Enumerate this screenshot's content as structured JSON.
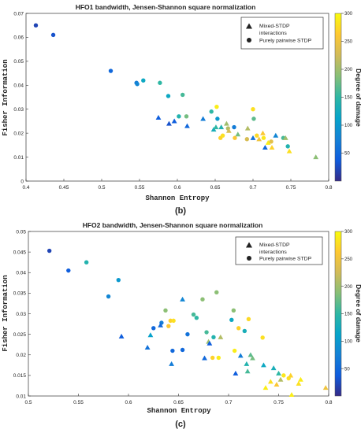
{
  "colorbar": {
    "label": "Degree of damage",
    "min": 0,
    "max": 300,
    "ticks": [
      50,
      100,
      150,
      200,
      250,
      300
    ]
  },
  "legend": {
    "items": [
      {
        "marker": "triangle",
        "label_lines": [
          "Mixed-STDP",
          "interactions"
        ]
      },
      {
        "marker": "circle",
        "label_lines": [
          "Purely pairwise STDP"
        ]
      }
    ]
  },
  "chart_data": [
    {
      "type": "scatter",
      "panel_label": "(b)",
      "title": "HFO1 bandwidth, Jensen-Shannon square normalization",
      "xlabel": "Shannon Entropy",
      "ylabel": "Fisher Information",
      "xlim": [
        0.4,
        0.8
      ],
      "ylim": [
        0,
        0.07
      ],
      "xticks": [
        0.4,
        0.45,
        0.5,
        0.55,
        0.6,
        0.65,
        0.7,
        0.75,
        0.8
      ],
      "yticks": [
        0,
        0.01,
        0.02,
        0.03,
        0.04,
        0.05,
        0.06,
        0.07
      ],
      "legend_position": "top-right",
      "series": [
        {
          "name": "Purely pairwise STDP",
          "marker": "circle",
          "points": [
            {
              "x": 0.413,
              "y": 0.065,
              "damage": 20
            },
            {
              "x": 0.436,
              "y": 0.061,
              "damage": 30
            },
            {
              "x": 0.512,
              "y": 0.046,
              "damage": 50
            },
            {
              "x": 0.546,
              "y": 0.041,
              "damage": 70
            },
            {
              "x": 0.547,
              "y": 0.0405,
              "damage": 80
            },
            {
              "x": 0.555,
              "y": 0.042,
              "damage": 120
            },
            {
              "x": 0.577,
              "y": 0.041,
              "damage": 150
            },
            {
              "x": 0.588,
              "y": 0.0355,
              "damage": 120
            },
            {
              "x": 0.602,
              "y": 0.027,
              "damage": 140
            },
            {
              "x": 0.607,
              "y": 0.036,
              "damage": 160
            },
            {
              "x": 0.612,
              "y": 0.027,
              "damage": 180
            },
            {
              "x": 0.645,
              "y": 0.029,
              "damage": 150
            },
            {
              "x": 0.652,
              "y": 0.031,
              "damage": 290
            },
            {
              "x": 0.653,
              "y": 0.026,
              "damage": 100
            },
            {
              "x": 0.657,
              "y": 0.018,
              "damage": 270
            },
            {
              "x": 0.66,
              "y": 0.019,
              "damage": 280
            },
            {
              "x": 0.667,
              "y": 0.022,
              "damage": 210
            },
            {
              "x": 0.675,
              "y": 0.0225,
              "damage": 70
            },
            {
              "x": 0.676,
              "y": 0.018,
              "damage": 260
            },
            {
              "x": 0.692,
              "y": 0.0175,
              "damage": 230
            },
            {
              "x": 0.7,
              "y": 0.03,
              "damage": 280
            },
            {
              "x": 0.701,
              "y": 0.026,
              "damage": 170
            },
            {
              "x": 0.705,
              "y": 0.019,
              "damage": 275
            },
            {
              "x": 0.714,
              "y": 0.018,
              "damage": 285
            },
            {
              "x": 0.724,
              "y": 0.0165,
              "damage": 240
            },
            {
              "x": 0.74,
              "y": 0.018,
              "damage": 160
            },
            {
              "x": 0.746,
              "y": 0.0145,
              "damage": 140
            }
          ]
        },
        {
          "name": "Mixed-STDP interactions",
          "marker": "triangle",
          "points": [
            {
              "x": 0.575,
              "y": 0.0265,
              "damage": 40
            },
            {
              "x": 0.589,
              "y": 0.024,
              "damage": 30
            },
            {
              "x": 0.596,
              "y": 0.025,
              "damage": 40
            },
            {
              "x": 0.613,
              "y": 0.023,
              "damage": 50
            },
            {
              "x": 0.634,
              "y": 0.026,
              "damage": 70
            },
            {
              "x": 0.648,
              "y": 0.0215,
              "damage": 130
            },
            {
              "x": 0.651,
              "y": 0.0225,
              "damage": 150
            },
            {
              "x": 0.658,
              "y": 0.0225,
              "damage": 140
            },
            {
              "x": 0.665,
              "y": 0.024,
              "damage": 200
            },
            {
              "x": 0.668,
              "y": 0.021,
              "damage": 230
            },
            {
              "x": 0.68,
              "y": 0.0195,
              "damage": 180
            },
            {
              "x": 0.693,
              "y": 0.022,
              "damage": 210
            },
            {
              "x": 0.7,
              "y": 0.018,
              "damage": 60
            },
            {
              "x": 0.708,
              "y": 0.0175,
              "damage": 250
            },
            {
              "x": 0.713,
              "y": 0.02,
              "damage": 260
            },
            {
              "x": 0.716,
              "y": 0.014,
              "damage": 50
            },
            {
              "x": 0.72,
              "y": 0.016,
              "damage": 290
            },
            {
              "x": 0.725,
              "y": 0.014,
              "damage": 270
            },
            {
              "x": 0.73,
              "y": 0.019,
              "damage": 80
            },
            {
              "x": 0.743,
              "y": 0.018,
              "damage": 200
            },
            {
              "x": 0.748,
              "y": 0.0125,
              "damage": 280
            },
            {
              "x": 0.783,
              "y": 0.01,
              "damage": 190
            }
          ]
        }
      ]
    },
    {
      "type": "scatter",
      "panel_label": "(c)",
      "title": "HFO2 bandwidth, Jensen-Shannon square normalization",
      "xlabel": "Shannon Entropy",
      "ylabel": "Fisher Information",
      "xlim": [
        0.5,
        0.8
      ],
      "ylim": [
        0.01,
        0.05
      ],
      "xticks": [
        0.5,
        0.55,
        0.6,
        0.65,
        0.7,
        0.75,
        0.8
      ],
      "yticks": [
        0.01,
        0.015,
        0.02,
        0.025,
        0.03,
        0.035,
        0.04,
        0.045,
        0.05
      ],
      "legend_position": "top-right",
      "series": [
        {
          "name": "Purely pairwise STDP",
          "marker": "circle",
          "points": [
            {
              "x": 0.521,
              "y": 0.0453,
              "damage": 20
            },
            {
              "x": 0.54,
              "y": 0.0405,
              "damage": 40
            },
            {
              "x": 0.558,
              "y": 0.0425,
              "damage": 140
            },
            {
              "x": 0.58,
              "y": 0.0342,
              "damage": 80
            },
            {
              "x": 0.59,
              "y": 0.0382,
              "damage": 100
            },
            {
              "x": 0.625,
              "y": 0.0265,
              "damage": 50
            },
            {
              "x": 0.633,
              "y": 0.0278,
              "damage": 70
            },
            {
              "x": 0.637,
              "y": 0.0308,
              "damage": 190
            },
            {
              "x": 0.64,
              "y": 0.027,
              "damage": 260
            },
            {
              "x": 0.642,
              "y": 0.0283,
              "damage": 270
            },
            {
              "x": 0.644,
              "y": 0.021,
              "damage": 50
            },
            {
              "x": 0.645,
              "y": 0.0283,
              "damage": 280
            },
            {
              "x": 0.654,
              "y": 0.0212,
              "damage": 50
            },
            {
              "x": 0.659,
              "y": 0.025,
              "damage": 60
            },
            {
              "x": 0.665,
              "y": 0.0298,
              "damage": 160
            },
            {
              "x": 0.668,
              "y": 0.029,
              "damage": 150
            },
            {
              "x": 0.674,
              "y": 0.0335,
              "damage": 190
            },
            {
              "x": 0.678,
              "y": 0.0255,
              "damage": 160
            },
            {
              "x": 0.684,
              "y": 0.0193,
              "damage": 270
            },
            {
              "x": 0.685,
              "y": 0.0243,
              "damage": 140
            },
            {
              "x": 0.688,
              "y": 0.0352,
              "damage": 190
            },
            {
              "x": 0.69,
              "y": 0.0193,
              "damage": 290
            },
            {
              "x": 0.703,
              "y": 0.0285,
              "damage": 120
            },
            {
              "x": 0.705,
              "y": 0.0308,
              "damage": 190
            },
            {
              "x": 0.706,
              "y": 0.021,
              "damage": 290
            },
            {
              "x": 0.71,
              "y": 0.0265,
              "damage": 270
            },
            {
              "x": 0.716,
              "y": 0.0258,
              "damage": 130
            },
            {
              "x": 0.72,
              "y": 0.0287,
              "damage": 275
            },
            {
              "x": 0.734,
              "y": 0.0242,
              "damage": 280
            },
            {
              "x": 0.755,
              "y": 0.015,
              "damage": 285
            },
            {
              "x": 0.76,
              "y": 0.0143,
              "damage": 280
            }
          ]
        },
        {
          "name": "Mixed-STDP interactions",
          "marker": "triangle",
          "points": [
            {
              "x": 0.593,
              "y": 0.0245,
              "damage": 40
            },
            {
              "x": 0.619,
              "y": 0.0218,
              "damage": 60
            },
            {
              "x": 0.622,
              "y": 0.0248,
              "damage": 110
            },
            {
              "x": 0.632,
              "y": 0.0272,
              "damage": 50
            },
            {
              "x": 0.643,
              "y": 0.0178,
              "damage": 70
            },
            {
              "x": 0.654,
              "y": 0.0335,
              "damage": 80
            },
            {
              "x": 0.676,
              "y": 0.0192,
              "damage": 50
            },
            {
              "x": 0.68,
              "y": 0.0232,
              "damage": 200
            },
            {
              "x": 0.681,
              "y": 0.0228,
              "damage": 40
            },
            {
              "x": 0.692,
              "y": 0.0243,
              "damage": 210
            },
            {
              "x": 0.707,
              "y": 0.0155,
              "damage": 40
            },
            {
              "x": 0.712,
              "y": 0.0198,
              "damage": 70
            },
            {
              "x": 0.718,
              "y": 0.0178,
              "damage": 140
            },
            {
              "x": 0.719,
              "y": 0.016,
              "damage": 160
            },
            {
              "x": 0.722,
              "y": 0.02,
              "damage": 170
            },
            {
              "x": 0.724,
              "y": 0.0192,
              "damage": 180
            },
            {
              "x": 0.735,
              "y": 0.0175,
              "damage": 120
            },
            {
              "x": 0.737,
              "y": 0.012,
              "damage": 290
            },
            {
              "x": 0.742,
              "y": 0.0135,
              "damage": 280
            },
            {
              "x": 0.745,
              "y": 0.0168,
              "damage": 130
            },
            {
              "x": 0.748,
              "y": 0.0128,
              "damage": 260
            },
            {
              "x": 0.75,
              "y": 0.0155,
              "damage": 150
            },
            {
              "x": 0.752,
              "y": 0.014,
              "damage": 210
            },
            {
              "x": 0.762,
              "y": 0.015,
              "damage": 270
            },
            {
              "x": 0.763,
              "y": 0.0103,
              "damage": 290
            },
            {
              "x": 0.77,
              "y": 0.013,
              "damage": 280
            },
            {
              "x": 0.772,
              "y": 0.014,
              "damage": 290
            },
            {
              "x": 0.797,
              "y": 0.012,
              "damage": 250
            }
          ]
        }
      ]
    }
  ]
}
